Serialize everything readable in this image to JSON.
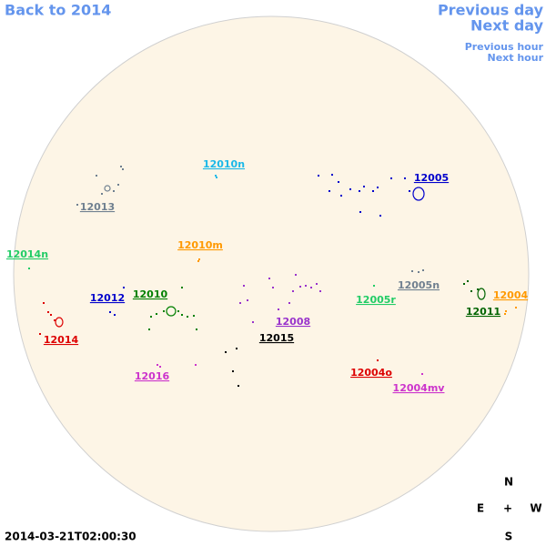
{
  "navigation": {
    "back": "Back to 2014",
    "previous_day": "Previous day",
    "next_day": "Next day",
    "previous_hour": "Previous hour",
    "next_hour": "Next hour"
  },
  "regions": [
    {
      "label": "12010n",
      "color": "#1ab8e8"
    },
    {
      "label": "12005",
      "color": "#0000cc"
    },
    {
      "label": "12013",
      "color": "#708090"
    },
    {
      "label": "12014n",
      "color": "#22cc66"
    },
    {
      "label": "12010m",
      "color": "#ff9900"
    },
    {
      "label": "12005n",
      "color": "#708090"
    },
    {
      "label": "12004",
      "color": "#ff9900"
    },
    {
      "label": "12012",
      "color": "#0000cc"
    },
    {
      "label": "12010",
      "color": "#008000"
    },
    {
      "label": "12005r",
      "color": "#22cc66"
    },
    {
      "label": "12011",
      "color": "#006400"
    },
    {
      "label": "12008",
      "color": "#9933cc"
    },
    {
      "label": "12014",
      "color": "#dd0000"
    },
    {
      "label": "12015",
      "color": "#000000"
    },
    {
      "label": "12016",
      "color": "#cc33cc"
    },
    {
      "label": "12004o",
      "color": "#dd0000"
    },
    {
      "label": "12004mv",
      "color": "#cc33cc"
    }
  ],
  "timestamp": "2014-03-21T02:00:30",
  "compass": {
    "north": "N",
    "east": "E",
    "center": "+",
    "west": "W",
    "south": "S"
  }
}
